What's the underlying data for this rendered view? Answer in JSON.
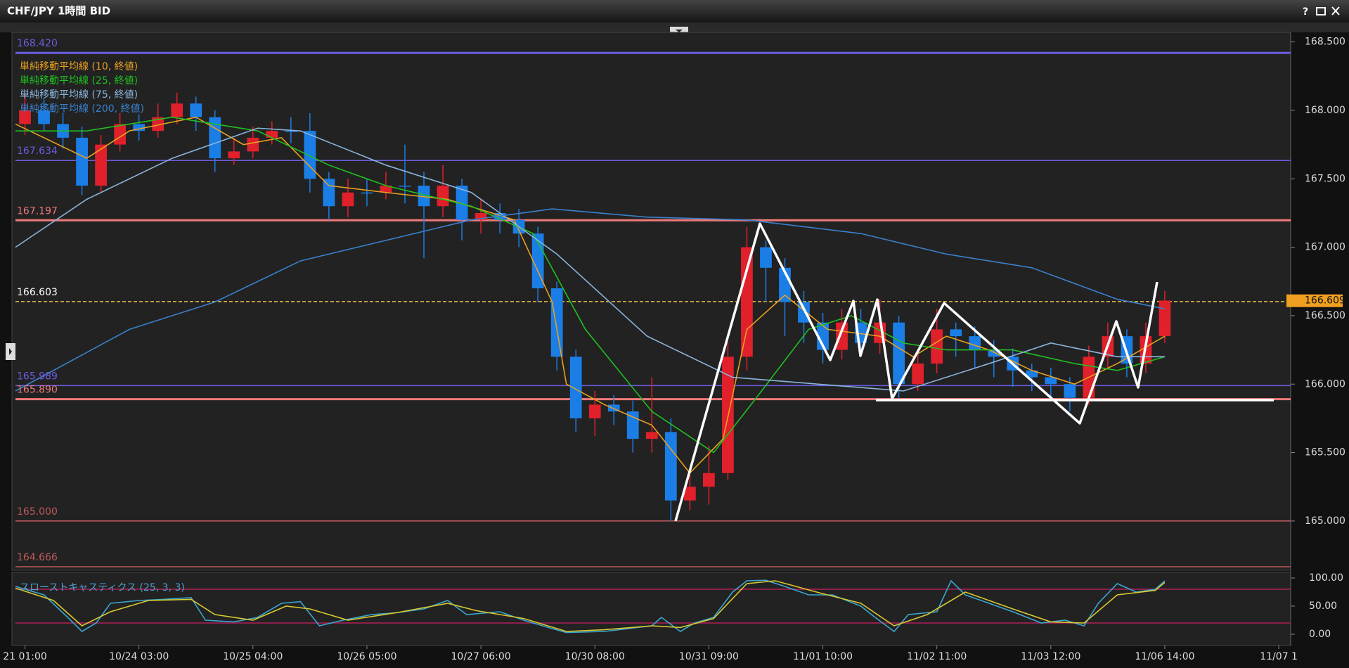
{
  "window": {
    "help_button": "?"
  },
  "chart_data": [
    {
      "type": "candlestick",
      "title": "CHF/JPY 1時間 BID",
      "up_color": "#e0202a",
      "down_color": "#1a7ee6",
      "xlim": [
        0,
        268.5
      ],
      "ylim": [
        164.64,
        168.57
      ],
      "yticks": [
        {
          "value": 165,
          "label": "165.000"
        },
        {
          "value": 165.5,
          "label": "165.500"
        },
        {
          "value": 166,
          "label": "166.000"
        },
        {
          "value": 166.5,
          "label": "166.500"
        },
        {
          "value": 167,
          "label": "167.000"
        },
        {
          "value": 167.5,
          "label": "167.500"
        },
        {
          "value": 168,
          "label": "168.000"
        },
        {
          "value": 168.5,
          "label": "168.500"
        }
      ],
      "x": [
        2,
        6,
        10,
        14,
        18,
        22,
        26,
        30,
        34,
        38,
        42,
        46,
        50,
        54,
        58,
        62,
        66,
        70,
        74,
        78,
        82,
        86,
        90,
        94,
        98,
        102,
        106,
        110,
        114,
        118,
        122,
        126,
        130,
        134,
        138,
        142,
        146,
        150,
        154,
        158,
        162,
        166,
        170,
        174,
        178,
        182,
        186,
        190,
        194,
        198,
        202,
        206,
        210,
        214,
        218,
        222,
        226,
        230,
        234,
        238,
        242
      ],
      "open": [
        167.9,
        168.0,
        167.9,
        167.8,
        167.45,
        167.75,
        167.9,
        167.85,
        167.95,
        168.05,
        167.95,
        167.65,
        167.7,
        167.8,
        167.85,
        167.85,
        167.5,
        167.3,
        167.4,
        167.4,
        167.45,
        167.45,
        167.3,
        167.45,
        167.2,
        167.25,
        167.2,
        167.1,
        166.7,
        166.2,
        165.75,
        165.85,
        165.8,
        165.6,
        165.65,
        165.15,
        165.25,
        165.35,
        166.2,
        167.0,
        166.85,
        166.6,
        166.45,
        166.25,
        166.45,
        166.3,
        166.45,
        166.0,
        166.15,
        166.4,
        166.35,
        166.25,
        166.2,
        166.1,
        166.05,
        166.0,
        165.9,
        166.2,
        166.35,
        166.15,
        166.35
      ],
      "high": [
        168.12,
        168.08,
        167.98,
        167.88,
        167.82,
        167.98,
        167.97,
        168.05,
        168.13,
        168.1,
        168.0,
        167.8,
        167.88,
        167.92,
        167.95,
        167.98,
        167.55,
        167.5,
        167.5,
        167.55,
        167.75,
        167.55,
        167.6,
        167.5,
        167.35,
        167.32,
        167.28,
        167.15,
        166.75,
        166.25,
        165.95,
        165.92,
        165.88,
        166.05,
        165.75,
        165.35,
        165.55,
        166.3,
        167.15,
        167.05,
        166.92,
        166.68,
        166.52,
        166.55,
        166.55,
        166.62,
        166.5,
        166.25,
        166.55,
        166.45,
        166.42,
        166.32,
        166.26,
        166.15,
        166.12,
        166.05,
        166.28,
        166.45,
        166.4,
        166.45,
        166.68
      ],
      "low": [
        167.82,
        167.85,
        167.72,
        167.38,
        167.4,
        167.7,
        167.78,
        167.8,
        167.9,
        167.85,
        167.55,
        167.6,
        167.65,
        167.75,
        167.76,
        167.4,
        167.2,
        167.22,
        167.3,
        167.35,
        167.32,
        166.92,
        167.22,
        167.05,
        167.1,
        167.1,
        167.0,
        166.6,
        166.1,
        165.65,
        165.62,
        165.7,
        165.5,
        165.5,
        165.0,
        165.08,
        165.12,
        165.3,
        166.1,
        166.6,
        166.35,
        166.3,
        166.15,
        166.18,
        166.2,
        166.22,
        165.9,
        165.95,
        166.08,
        166.2,
        166.12,
        166.05,
        165.98,
        165.95,
        165.9,
        165.8,
        165.85,
        166.12,
        166.05,
        166.08,
        166.3
      ],
      "close": [
        168.0,
        167.9,
        167.8,
        167.45,
        167.75,
        167.9,
        167.85,
        167.95,
        168.05,
        167.95,
        167.65,
        167.7,
        167.8,
        167.85,
        167.85,
        167.5,
        167.3,
        167.4,
        167.4,
        167.45,
        167.45,
        167.3,
        167.45,
        167.2,
        167.25,
        167.2,
        167.1,
        166.7,
        166.2,
        165.75,
        165.85,
        165.8,
        165.6,
        165.65,
        165.15,
        165.25,
        165.35,
        166.2,
        167.0,
        166.85,
        166.6,
        166.45,
        166.25,
        166.45,
        166.3,
        166.45,
        166.0,
        166.15,
        166.4,
        166.35,
        166.25,
        166.2,
        166.1,
        166.05,
        166.0,
        165.9,
        166.2,
        166.35,
        166.15,
        166.35,
        166.61
      ],
      "indicators": [
        {
          "name": "単純移動平均線 (10, 終値)",
          "color": "#e8a020",
          "x": [
            0,
            15,
            24,
            38,
            48,
            56,
            66,
            78,
            91,
            105,
            113,
            116,
            124,
            134,
            142,
            149,
            154,
            162,
            171,
            182,
            189,
            196,
            205,
            214,
            223,
            232,
            242
          ],
          "values": [
            167.9,
            167.65,
            167.85,
            167.95,
            167.75,
            167.8,
            167.45,
            167.4,
            167.35,
            167.2,
            166.6,
            166.0,
            165.85,
            165.7,
            165.35,
            165.6,
            166.4,
            166.65,
            166.4,
            166.35,
            166.2,
            166.35,
            166.25,
            166.1,
            166.0,
            166.15,
            166.35
          ]
        },
        {
          "name": "単純移動平均線 (25, 終値)",
          "color": "#20c020",
          "x": [
            0,
            15,
            33,
            51,
            66,
            78,
            96,
            109,
            120,
            134,
            147,
            156,
            167,
            176,
            187,
            196,
            210,
            223,
            232,
            242
          ],
          "values": [
            167.85,
            167.85,
            167.95,
            167.85,
            167.6,
            167.45,
            167.3,
            167.1,
            166.4,
            165.8,
            165.5,
            165.9,
            166.4,
            166.5,
            166.3,
            166.25,
            166.25,
            166.15,
            166.1,
            166.2
          ]
        },
        {
          "name": "単純移動平均線 (75, 終値)",
          "color": "#8ab4dc",
          "x": [
            0,
            15,
            33,
            51,
            60,
            78,
            96,
            114,
            133,
            151,
            169,
            187,
            205,
            218,
            232,
            242
          ],
          "values": [
            167.0,
            167.35,
            167.65,
            167.87,
            167.85,
            167.6,
            167.4,
            166.95,
            166.35,
            166.05,
            166.0,
            165.95,
            166.15,
            166.3,
            166.2,
            166.2
          ]
        },
        {
          "name": "単純移動平均線 (200, 終値)",
          "color": "#3a80cc",
          "x": [
            0,
            24,
            42,
            60,
            78,
            96,
            113,
            133,
            154,
            178,
            196,
            214,
            232,
            242
          ],
          "values": [
            165.95,
            166.4,
            166.6,
            166.9,
            167.05,
            167.2,
            167.28,
            167.22,
            167.2,
            167.1,
            166.95,
            166.85,
            166.62,
            166.55
          ]
        }
      ],
      "levels": [
        {
          "value": 168.42,
          "label": "168.420",
          "color": "#6a5ee0",
          "style": "thick"
        },
        {
          "value": 167.634,
          "color": "#6a5ee0",
          "style": "thin"
        },
        {
          "value": 167.197,
          "color": "#f07a7a",
          "style": "thick"
        },
        {
          "value": 166.603,
          "color": "#e8c040",
          "style": "dashed"
        },
        {
          "value": 165.989,
          "color": "#6a5ee0",
          "style": "thin"
        },
        {
          "value": 165.89,
          "label": "165.890",
          "color": "#f07a7a",
          "style": "thick"
        },
        {
          "value": 165,
          "label": "165.000",
          "color": "#c05a5a",
          "style": "thin"
        },
        {
          "value": 164.666,
          "color": "#c05a5a",
          "style": "thin"
        }
      ],
      "last_price": {
        "value": 166.609,
        "color": "#f0a020"
      }
    },
    {
      "type": "line",
      "title": "スローストキャスティクス (25, 3, 3)",
      "xlim": [
        0,
        268.5
      ],
      "ylim": [
        -20,
        110
      ],
      "yticks": [
        {
          "value": 0,
          "label": "0.00"
        },
        {
          "value": 50,
          "label": "50.00"
        },
        {
          "value": 100,
          "label": "100.00"
        }
      ],
      "levels": [
        20,
        80
      ],
      "level_color": "#b0205a",
      "xticks": [
        {
          "value": 2,
          "label": "21 01:00"
        },
        {
          "value": 26,
          "label": "10/24 03:00"
        },
        {
          "value": 50,
          "label": "10/25 04:00"
        },
        {
          "value": 74,
          "label": "10/26 05:00"
        },
        {
          "value": 98,
          "label": "10/27 06:00"
        },
        {
          "value": 122,
          "label": "10/30 08:00"
        },
        {
          "value": 146,
          "label": "10/31 09:00"
        },
        {
          "value": 170,
          "label": "11/01 10:00"
        },
        {
          "value": 194,
          "label": "11/02 11:00"
        },
        {
          "value": 218,
          "label": "11/03 12:00"
        },
        {
          "value": 242,
          "label": "11/06 14:00"
        },
        {
          "value": 266,
          "label": "11/07 1"
        }
      ],
      "series": [
        {
          "color": "#3aa6d0",
          "x": [
            0,
            6,
            11,
            14,
            17,
            20,
            26,
            31,
            37,
            40,
            46,
            51,
            56,
            60,
            64,
            69,
            75,
            80,
            86,
            91,
            95,
            102,
            107,
            113,
            116,
            124,
            129,
            134,
            136,
            140,
            143,
            147,
            151,
            154,
            158,
            162,
            167,
            172,
            178,
            181,
            185,
            188,
            194,
            197,
            200,
            205,
            210,
            216,
            221,
            225,
            228,
            232,
            236,
            240,
            242
          ],
          "values": [
            85,
            70,
            30,
            5,
            20,
            55,
            60,
            62,
            65,
            25,
            22,
            30,
            55,
            58,
            15,
            25,
            35,
            38,
            45,
            60,
            35,
            40,
            25,
            10,
            3,
            5,
            10,
            15,
            30,
            5,
            20,
            30,
            75,
            95,
            96,
            85,
            70,
            70,
            50,
            30,
            5,
            35,
            40,
            95,
            70,
            55,
            40,
            20,
            25,
            15,
            55,
            90,
            75,
            80,
            95
          ]
        },
        {
          "color": "#d8c830",
          "x": [
            0,
            8,
            14,
            20,
            28,
            37,
            42,
            50,
            57,
            62,
            70,
            80,
            91,
            97,
            107,
            116,
            124,
            134,
            140,
            147,
            154,
            160,
            170,
            178,
            185,
            192,
            200,
            210,
            218,
            225,
            232,
            240,
            242
          ],
          "values": [
            82,
            60,
            15,
            40,
            60,
            62,
            35,
            25,
            50,
            45,
            25,
            38,
            55,
            42,
            28,
            5,
            8,
            15,
            12,
            28,
            90,
            95,
            72,
            55,
            15,
            35,
            75,
            45,
            22,
            20,
            70,
            78,
            92
          ]
        }
      ]
    }
  ]
}
